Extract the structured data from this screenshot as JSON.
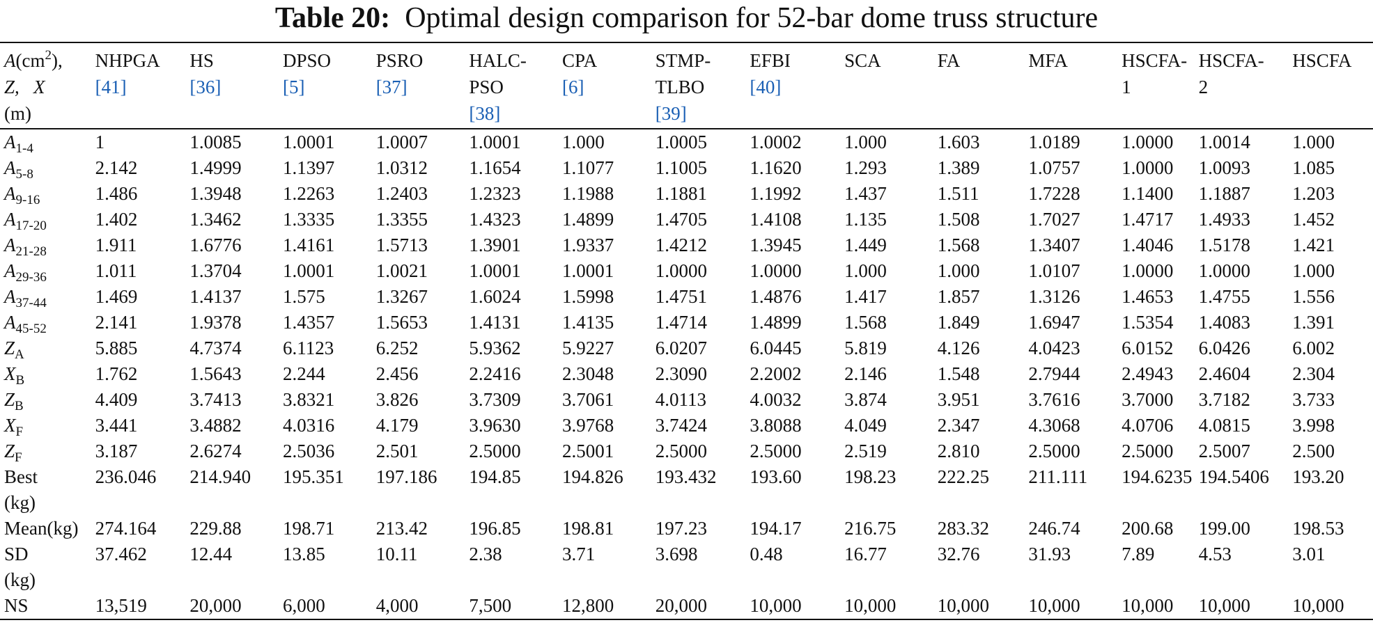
{
  "caption": {
    "label": "Table 20:",
    "text": "Optimal design comparison for 52-bar dome truss structure"
  },
  "header": {
    "first": {
      "A": "A",
      "unit_open": "(cm",
      "unit_sup": "2",
      "unit_close": "),",
      "Z": "Z,",
      "X": "X",
      "m": "(m)"
    },
    "columns": [
      {
        "lines": [
          "NHPGA"
        ],
        "ref": "[41]"
      },
      {
        "lines": [
          "HS"
        ],
        "ref": "[36]"
      },
      {
        "lines": [
          "DPSO"
        ],
        "ref": "[5]"
      },
      {
        "lines": [
          "PSRO"
        ],
        "ref": "[37]"
      },
      {
        "lines": [
          "HALC-",
          "PSO"
        ],
        "ref": "[38]"
      },
      {
        "lines": [
          "CPA"
        ],
        "ref": "[6]"
      },
      {
        "lines": [
          "STMP-",
          "TLBO"
        ],
        "ref": "[39]"
      },
      {
        "lines": [
          "EFBI"
        ],
        "ref": "[40]"
      },
      {
        "lines": [
          "SCA"
        ],
        "ref": ""
      },
      {
        "lines": [
          "FA"
        ],
        "ref": ""
      },
      {
        "lines": [
          "MFA"
        ],
        "ref": ""
      },
      {
        "lines": [
          "HSCFA-",
          "1"
        ],
        "ref": ""
      },
      {
        "lines": [
          "HSCFA-",
          "2"
        ],
        "ref": ""
      },
      {
        "lines": [
          "HSCFA"
        ],
        "ref": ""
      }
    ]
  },
  "rows": [
    {
      "sym": "A",
      "sub": "1-4",
      "values": [
        "1",
        "1.0085",
        "1.0001",
        "1.0007",
        "1.0001",
        "1.000",
        "1.0005",
        "1.0002",
        "1.000",
        "1.603",
        "1.0189",
        "1.0000",
        "1.0014",
        "1.000"
      ]
    },
    {
      "sym": "A",
      "sub": "5-8",
      "values": [
        "2.142",
        "1.4999",
        "1.1397",
        "1.0312",
        "1.1654",
        "1.1077",
        "1.1005",
        "1.1620",
        "1.293",
        "1.389",
        "1.0757",
        "1.0000",
        "1.0093",
        "1.085"
      ]
    },
    {
      "sym": "A",
      "sub": "9-16",
      "values": [
        "1.486",
        "1.3948",
        "1.2263",
        "1.2403",
        "1.2323",
        "1.1988",
        "1.1881",
        "1.1992",
        "1.437",
        "1.511",
        "1.7228",
        "1.1400",
        "1.1887",
        "1.203"
      ]
    },
    {
      "sym": "A",
      "sub": "17-20",
      "values": [
        "1.402",
        "1.3462",
        "1.3335",
        "1.3355",
        "1.4323",
        "1.4899",
        "1.4705",
        "1.4108",
        "1.135",
        "1.508",
        "1.7027",
        "1.4717",
        "1.4933",
        "1.452"
      ]
    },
    {
      "sym": "A",
      "sub": "21-28",
      "values": [
        "1.911",
        "1.6776",
        "1.4161",
        "1.5713",
        "1.3901",
        "1.9337",
        "1.4212",
        "1.3945",
        "1.449",
        "1.568",
        "1.3407",
        "1.4046",
        "1.5178",
        "1.421"
      ]
    },
    {
      "sym": "A",
      "sub": "29-36",
      "values": [
        "1.011",
        "1.3704",
        "1.0001",
        "1.0021",
        "1.0001",
        "1.0001",
        "1.0000",
        "1.0000",
        "1.000",
        "1.000",
        "1.0107",
        "1.0000",
        "1.0000",
        "1.000"
      ]
    },
    {
      "sym": "A",
      "sub": "37-44",
      "values": [
        "1.469",
        "1.4137",
        "1.575",
        "1.3267",
        "1.6024",
        "1.5998",
        "1.4751",
        "1.4876",
        "1.417",
        "1.857",
        "1.3126",
        "1.4653",
        "1.4755",
        "1.556"
      ]
    },
    {
      "sym": "A",
      "sub": "45-52",
      "values": [
        "2.141",
        "1.9378",
        "1.4357",
        "1.5653",
        "1.4131",
        "1.4135",
        "1.4714",
        "1.4899",
        "1.568",
        "1.849",
        "1.6947",
        "1.5354",
        "1.4083",
        "1.391"
      ]
    },
    {
      "sym": "Z",
      "sub": "A",
      "values": [
        "5.885",
        "4.7374",
        "6.1123",
        "6.252",
        "5.9362",
        "5.9227",
        "6.0207",
        "6.0445",
        "5.819",
        "4.126",
        "4.0423",
        "6.0152",
        "6.0426",
        "6.002"
      ]
    },
    {
      "sym": "X",
      "sub": "B",
      "values": [
        "1.762",
        "1.5643",
        "2.244",
        "2.456",
        "2.2416",
        "2.3048",
        "2.3090",
        "2.2002",
        "2.146",
        "1.548",
        "2.7944",
        "2.4943",
        "2.4604",
        "2.304"
      ]
    },
    {
      "sym": "Z",
      "sub": "B",
      "values": [
        "4.409",
        "3.7413",
        "3.8321",
        "3.826",
        "3.7309",
        "3.7061",
        "4.0113",
        "4.0032",
        "3.874",
        "3.951",
        "3.7616",
        "3.7000",
        "3.7182",
        "3.733"
      ]
    },
    {
      "sym": "X",
      "sub": "F",
      "values": [
        "3.441",
        "3.4882",
        "4.0316",
        "4.179",
        "3.9630",
        "3.9768",
        "3.7424",
        "3.8088",
        "4.049",
        "2.347",
        "4.3068",
        "4.0706",
        "4.0815",
        "3.998"
      ]
    },
    {
      "sym": "Z",
      "sub": "F",
      "values": [
        "3.187",
        "2.6274",
        "2.5036",
        "2.501",
        "2.5000",
        "2.5001",
        "2.5000",
        "2.5000",
        "2.519",
        "2.810",
        "2.5000",
        "2.5000",
        "2.5007",
        "2.500"
      ]
    },
    {
      "label": [
        "Best",
        "(kg)"
      ],
      "values": [
        "236.046",
        "214.940",
        "195.351",
        "197.186",
        "194.85",
        "194.826",
        "193.432",
        "193.60",
        "198.23",
        "222.25",
        "211.111",
        "194.6235",
        "194.5406",
        "193.20"
      ]
    },
    {
      "label": [
        "Mean(kg)"
      ],
      "values": [
        "274.164",
        "229.88",
        "198.71",
        "213.42",
        "196.85",
        "198.81",
        "197.23",
        "194.17",
        "216.75",
        "283.32",
        "246.74",
        "200.68",
        "199.00",
        "198.53"
      ]
    },
    {
      "label": [
        "SD",
        "(kg)"
      ],
      "values": [
        "37.462",
        "12.44",
        "13.85",
        "10.11",
        "2.38",
        "3.71",
        "3.698",
        "0.48",
        "16.77",
        "32.76",
        "31.93",
        "7.89",
        "4.53",
        "3.01"
      ]
    },
    {
      "label": [
        "NS"
      ],
      "values": [
        "13,519",
        "20,000",
        "6,000",
        "4,000",
        "7,500",
        "12,800",
        "20,000",
        "10,000",
        "10,000",
        "10,000",
        "10,000",
        "10,000",
        "10,000",
        "10,000"
      ]
    }
  ]
}
